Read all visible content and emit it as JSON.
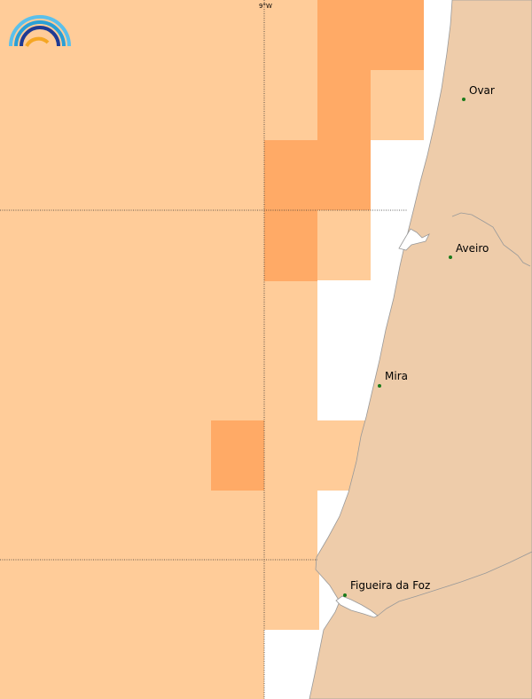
{
  "map": {
    "longitude_label": "9°W",
    "colors": {
      "sea_light": "#FFCC99",
      "sea_dark": "#FFAA66",
      "land": "#EECCAA",
      "coast": "#999999",
      "grid": "#333333",
      "city_dot": "#1a7a1a"
    },
    "cities": [
      {
        "name": "Ovar"
      },
      {
        "name": "Aveiro"
      },
      {
        "name": "Mira"
      },
      {
        "name": "Figueira da Foz"
      }
    ]
  },
  "logo": {
    "icon": "rainbow-logo-icon"
  }
}
